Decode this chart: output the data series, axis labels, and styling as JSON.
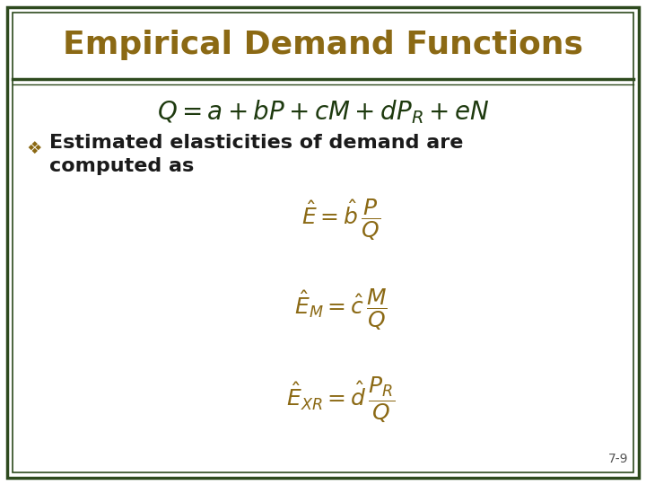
{
  "title": "Empirical Demand Functions",
  "title_color": "#8B6914",
  "bg_color": "#FFFFFF",
  "border_outer_color": "#2E4A1E",
  "border_inner_color": "#2E4A1E",
  "formula_main_color": "#1E3A0F",
  "bullet_color": "#1A1A1A",
  "bullet_symbol_color": "#8B6914",
  "formula_color": "#8B6914",
  "page_number": "7-9",
  "page_number_color": "#555555",
  "header_line_color": "#2E4A1E",
  "title_fontsize": 26,
  "body_fontsize": 16,
  "formula_fontsize": 18
}
